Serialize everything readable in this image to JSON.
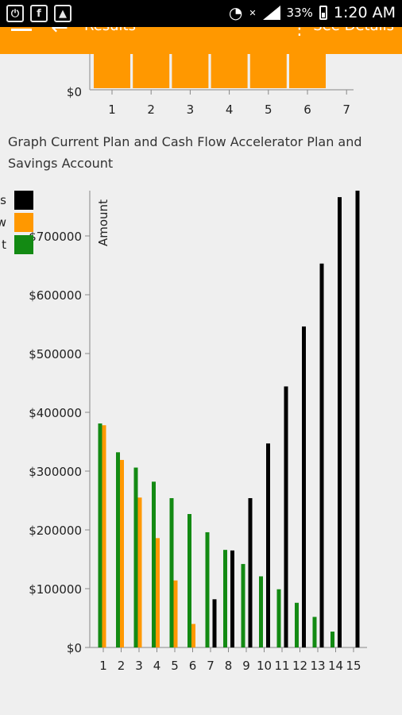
{
  "status_bar": {
    "battery": "33%",
    "time": "1:20 AM"
  },
  "app_bar": {
    "title": "Results",
    "details_label": "See Details"
  },
  "chart_data": [
    {
      "type": "bar",
      "title": "",
      "categories": [
        "1",
        "2",
        "3",
        "4",
        "5",
        "6",
        "7"
      ],
      "series": [
        {
          "name": "",
          "color": "#ff9800",
          "values": [
            null,
            null,
            null,
            null,
            null,
            null,
            null
          ]
        }
      ],
      "y_ticks": [
        "$0"
      ],
      "xlabel": "",
      "ylabel": "",
      "note": "Only the bottom edge of this chart is visible; orange bars for categories 1-6 extend above the visible area."
    },
    {
      "type": "bar",
      "title": "Graph Current Plan and Cash Flow Accelerator Plan and Savings Account",
      "categories": [
        "1",
        "2",
        "3",
        "4",
        "5",
        "6",
        "7",
        "8",
        "9",
        "10",
        "11",
        "12",
        "13",
        "14",
        "15"
      ],
      "series": [
        {
          "name": "t",
          "color": "#138a13",
          "values": [
            381000,
            332000,
            306000,
            282000,
            254000,
            227000,
            196000,
            166000,
            142000,
            121000,
            99000,
            76000,
            52000,
            27000,
            0
          ]
        },
        {
          "name": "w",
          "color": "#ff9800",
          "values": [
            378000,
            319000,
            255000,
            186000,
            114000,
            40000,
            0,
            0,
            0,
            0,
            0,
            0,
            0,
            0,
            0
          ]
        },
        {
          "name": "s",
          "color": "#000000",
          "values": [
            0,
            0,
            0,
            0,
            0,
            0,
            82000,
            165000,
            254000,
            347000,
            444000,
            546000,
            653000,
            766000,
            777000
          ]
        }
      ],
      "ylabel": "Amount",
      "xlabel": "",
      "ylim": [
        0,
        777000
      ],
      "y_ticks": [
        "$0",
        "$100000",
        "$200000",
        "$300000",
        "$400000",
        "$500000",
        "$600000",
        "$700000"
      ],
      "legend": "top-left",
      "grid": false
    }
  ]
}
